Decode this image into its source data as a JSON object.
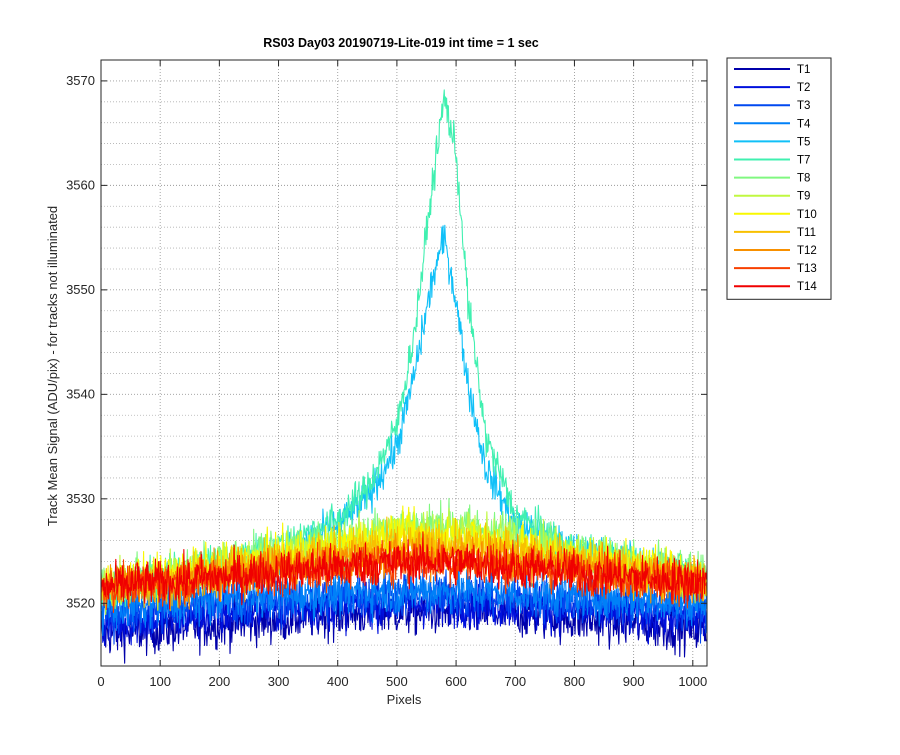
{
  "chart_data": {
    "type": "line",
    "title": "RS03 Day03 20190719-Lite-019 int time = 1 sec",
    "xlabel": "Pixels",
    "ylabel": "Track Mean Signal (ADU/pix) - for tracks not illuminated",
    "xlim": [
      0,
      1024
    ],
    "ylim": [
      3514,
      3572
    ],
    "x_ticks": [
      0,
      100,
      200,
      300,
      400,
      500,
      600,
      700,
      800,
      900,
      1000
    ],
    "y_ticks": [
      3520,
      3530,
      3540,
      3550,
      3560,
      3570
    ],
    "grid": true,
    "minor_grid_y": true,
    "legend_position": "outside-top-right",
    "series": [
      {
        "name": "T1",
        "color": "#0000aa",
        "points": [
          [
            0,
            3517
          ],
          [
            100,
            3517.5
          ],
          [
            200,
            3518
          ],
          [
            300,
            3518.5
          ],
          [
            400,
            3519
          ],
          [
            500,
            3519.2
          ],
          [
            600,
            3519.2
          ],
          [
            700,
            3519
          ],
          [
            800,
            3518.5
          ],
          [
            900,
            3518
          ],
          [
            1024,
            3517.5
          ]
        ],
        "noise": 1.6
      },
      {
        "name": "T2",
        "color": "#0010dd",
        "points": [
          [
            0,
            3518
          ],
          [
            100,
            3518.5
          ],
          [
            200,
            3519
          ],
          [
            300,
            3519.5
          ],
          [
            400,
            3519.8
          ],
          [
            500,
            3520
          ],
          [
            600,
            3520
          ],
          [
            700,
            3519.8
          ],
          [
            800,
            3519.5
          ],
          [
            900,
            3519
          ],
          [
            1024,
            3518.5
          ]
        ],
        "noise": 1.6
      },
      {
        "name": "T3",
        "color": "#0048f0",
        "points": [
          [
            0,
            3519
          ],
          [
            100,
            3519.5
          ],
          [
            200,
            3520
          ],
          [
            300,
            3520.3
          ],
          [
            400,
            3520.6
          ],
          [
            500,
            3520.8
          ],
          [
            600,
            3520.8
          ],
          [
            700,
            3520.6
          ],
          [
            800,
            3520.3
          ],
          [
            900,
            3520
          ],
          [
            1024,
            3519.5
          ]
        ],
        "noise": 1.6
      },
      {
        "name": "T4",
        "color": "#0080f8",
        "points": [
          [
            0,
            3519.5
          ],
          [
            100,
            3520
          ],
          [
            200,
            3520.5
          ],
          [
            300,
            3520.8
          ],
          [
            400,
            3521
          ],
          [
            500,
            3521.2
          ],
          [
            600,
            3521.2
          ],
          [
            700,
            3521
          ],
          [
            800,
            3520.8
          ],
          [
            900,
            3520.5
          ],
          [
            1024,
            3520
          ]
        ],
        "noise": 1.6
      },
      {
        "name": "T5",
        "color": "#10c0f8",
        "points": [
          [
            0,
            3521.5
          ],
          [
            100,
            3522
          ],
          [
            200,
            3523
          ],
          [
            300,
            3524.5
          ],
          [
            400,
            3527.5
          ],
          [
            450,
            3530
          ],
          [
            500,
            3535
          ],
          [
            530,
            3542
          ],
          [
            560,
            3551
          ],
          [
            580,
            3555
          ],
          [
            600,
            3549
          ],
          [
            620,
            3541
          ],
          [
            650,
            3533
          ],
          [
            700,
            3527.5
          ],
          [
            800,
            3525
          ],
          [
            900,
            3524
          ],
          [
            1024,
            3522.5
          ]
        ],
        "noise": 1.2
      },
      {
        "name": "T7",
        "color": "#40f0b0",
        "points": [
          [
            0,
            3521.5
          ],
          [
            100,
            3522.5
          ],
          [
            200,
            3524
          ],
          [
            300,
            3525.5
          ],
          [
            400,
            3528
          ],
          [
            450,
            3531
          ],
          [
            500,
            3537
          ],
          [
            530,
            3546
          ],
          [
            560,
            3560
          ],
          [
            580,
            3568.5
          ],
          [
            600,
            3563
          ],
          [
            620,
            3549
          ],
          [
            650,
            3536
          ],
          [
            700,
            3528.5
          ],
          [
            800,
            3525
          ],
          [
            900,
            3524
          ],
          [
            1024,
            3522.5
          ]
        ],
        "noise": 1.2
      },
      {
        "name": "T8",
        "color": "#80f880",
        "points": [
          [
            0,
            3522
          ],
          [
            100,
            3522.5
          ],
          [
            200,
            3524
          ],
          [
            300,
            3525
          ],
          [
            400,
            3526
          ],
          [
            500,
            3527.5
          ],
          [
            600,
            3527.5
          ],
          [
            700,
            3526.5
          ],
          [
            800,
            3525
          ],
          [
            900,
            3524
          ],
          [
            1024,
            3522.5
          ]
        ],
        "noise": 1.5
      },
      {
        "name": "T9",
        "color": "#c0f840",
        "points": [
          [
            0,
            3521.5
          ],
          [
            100,
            3522
          ],
          [
            200,
            3523.5
          ],
          [
            300,
            3524.5
          ],
          [
            400,
            3525.5
          ],
          [
            500,
            3527
          ],
          [
            600,
            3527
          ],
          [
            700,
            3526
          ],
          [
            800,
            3524.5
          ],
          [
            900,
            3523.5
          ],
          [
            1024,
            3522
          ]
        ],
        "noise": 1.5
      },
      {
        "name": "T10",
        "color": "#f8f800",
        "points": [
          [
            0,
            3522
          ],
          [
            100,
            3522.5
          ],
          [
            200,
            3523.5
          ],
          [
            300,
            3524.5
          ],
          [
            400,
            3525.5
          ],
          [
            500,
            3526.5
          ],
          [
            600,
            3526.5
          ],
          [
            700,
            3525.5
          ],
          [
            800,
            3524.5
          ],
          [
            900,
            3523.5
          ],
          [
            1024,
            3522.5
          ]
        ],
        "noise": 1.5
      },
      {
        "name": "T11",
        "color": "#f8c000",
        "points": [
          [
            0,
            3521.5
          ],
          [
            100,
            3522
          ],
          [
            200,
            3523
          ],
          [
            300,
            3524
          ],
          [
            400,
            3525
          ],
          [
            500,
            3525.5
          ],
          [
            600,
            3525.5
          ],
          [
            700,
            3525
          ],
          [
            800,
            3524
          ],
          [
            900,
            3523
          ],
          [
            1024,
            3522
          ]
        ],
        "noise": 1.5
      },
      {
        "name": "T12",
        "color": "#f89000",
        "points": [
          [
            0,
            3521.5
          ],
          [
            100,
            3522
          ],
          [
            200,
            3522.5
          ],
          [
            300,
            3523.5
          ],
          [
            400,
            3524
          ],
          [
            500,
            3524.5
          ],
          [
            600,
            3524.5
          ],
          [
            700,
            3524
          ],
          [
            800,
            3523.5
          ],
          [
            900,
            3522.5
          ],
          [
            1024,
            3522
          ]
        ],
        "noise": 1.5
      },
      {
        "name": "T13",
        "color": "#f84000",
        "points": [
          [
            0,
            3521.5
          ],
          [
            100,
            3522
          ],
          [
            200,
            3522.5
          ],
          [
            300,
            3523
          ],
          [
            400,
            3523.5
          ],
          [
            500,
            3524
          ],
          [
            600,
            3524
          ],
          [
            700,
            3523.5
          ],
          [
            800,
            3523
          ],
          [
            900,
            3522.5
          ],
          [
            1024,
            3522
          ]
        ],
        "noise": 1.5
      },
      {
        "name": "T14",
        "color": "#f00000",
        "points": [
          [
            0,
            3521.5
          ],
          [
            100,
            3522
          ],
          [
            200,
            3522.5
          ],
          [
            300,
            3523
          ],
          [
            400,
            3523.5
          ],
          [
            500,
            3524
          ],
          [
            600,
            3524
          ],
          [
            700,
            3523.5
          ],
          [
            800,
            3523
          ],
          [
            900,
            3522.5
          ],
          [
            1024,
            3522
          ]
        ],
        "noise": 1.5
      }
    ]
  }
}
